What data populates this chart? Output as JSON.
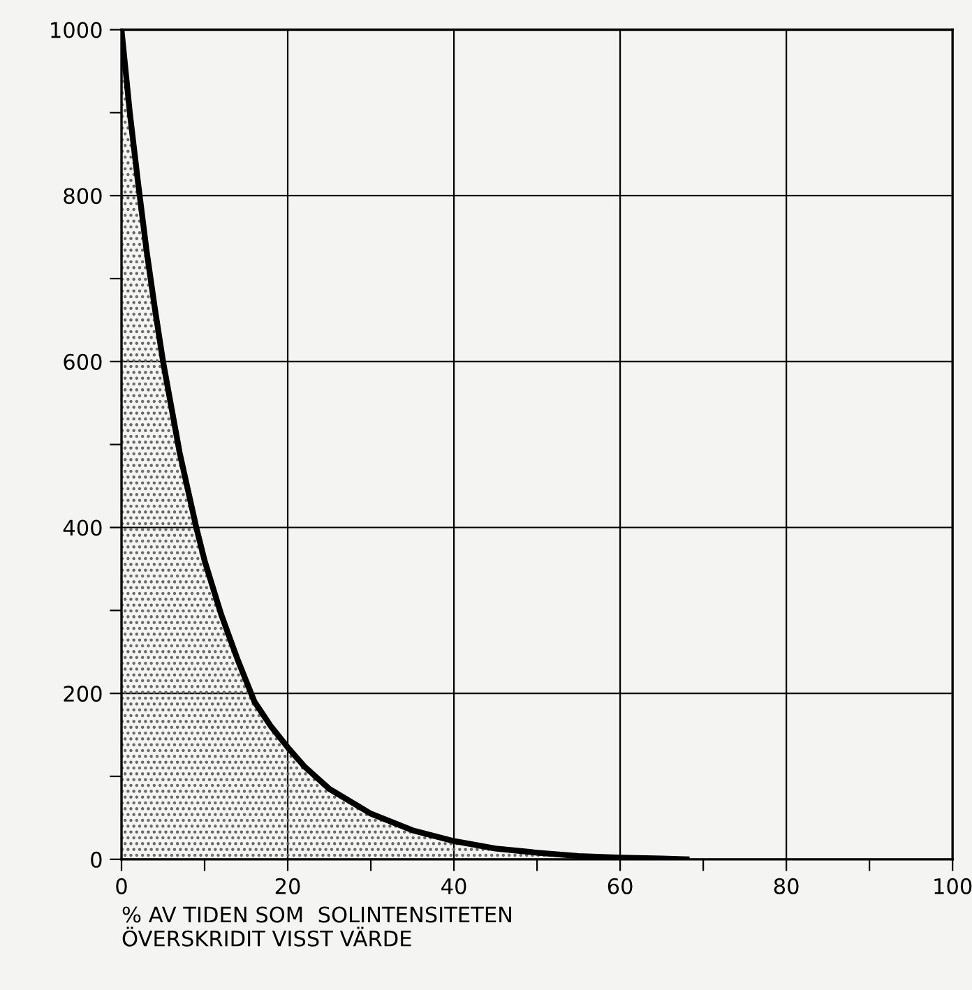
{
  "chart_data": {
    "type": "area",
    "xlabel": "% AV TIDEN SOM  SOLINTENSITETEN\nÖVERSKRIDIT VISST VÄRDE",
    "x": [
      0,
      1,
      2,
      3,
      4,
      5,
      6,
      7,
      8,
      9,
      10,
      12,
      14,
      16,
      18,
      20,
      22,
      25,
      30,
      35,
      40,
      45,
      50,
      55,
      60,
      65,
      68
    ],
    "series": [
      {
        "color": "#000000",
        "values": [
          1000,
          900,
          815,
          735,
          665,
          600,
          545,
          490,
          445,
          400,
          360,
          295,
          240,
          190,
          160,
          135,
          112,
          85,
          55,
          35,
          22,
          13,
          8,
          4,
          2,
          1,
          0
        ]
      }
    ],
    "xlim": [
      0,
      100
    ],
    "ylim": [
      0,
      1000
    ],
    "xticks": [
      0,
      {
        "value": 10,
        "label": null
      },
      20,
      {
        "value": 30,
        "label": null
      },
      40,
      {
        "value": 50,
        "label": null
      },
      60,
      {
        "value": 70,
        "label": null
      },
      80,
      {
        "value": 90,
        "label": null
      },
      100
    ],
    "yticks": [
      0,
      {
        "value": 100,
        "label": null
      },
      200,
      {
        "value": 300,
        "label": null
      },
      400,
      {
        "value": 500,
        "label": null
      },
      600,
      {
        "value": 700,
        "label": null
      },
      800,
      {
        "value": 900,
        "label": null
      },
      1000
    ],
    "grid": true,
    "marker": "none",
    "line_style": "solid"
  }
}
